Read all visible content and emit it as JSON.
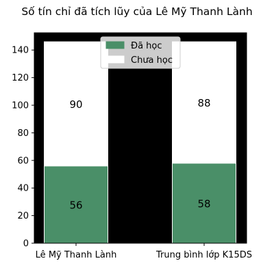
{
  "chart_data": {
    "type": "bar",
    "stacked": true,
    "title": "Số tín chỉ đã tích lũy của Lê Mỹ Thanh Lành",
    "xlabel": "",
    "ylabel": "",
    "categories": [
      "Lê Mỹ Thanh Lành",
      "Trung bình lớp K15DS"
    ],
    "series": [
      {
        "name": "Đã học",
        "values": [
          56,
          58
        ],
        "color": "#4a8f68"
      },
      {
        "name": "Chưa học",
        "values": [
          90,
          88
        ],
        "color": "#ffffff"
      }
    ],
    "ylim": [
      0,
      152.5
    ],
    "yticks": [
      0,
      20,
      40,
      60,
      80,
      100,
      120,
      140
    ],
    "plot_background": "#000000",
    "legend_position": "top-center",
    "grid": false
  }
}
